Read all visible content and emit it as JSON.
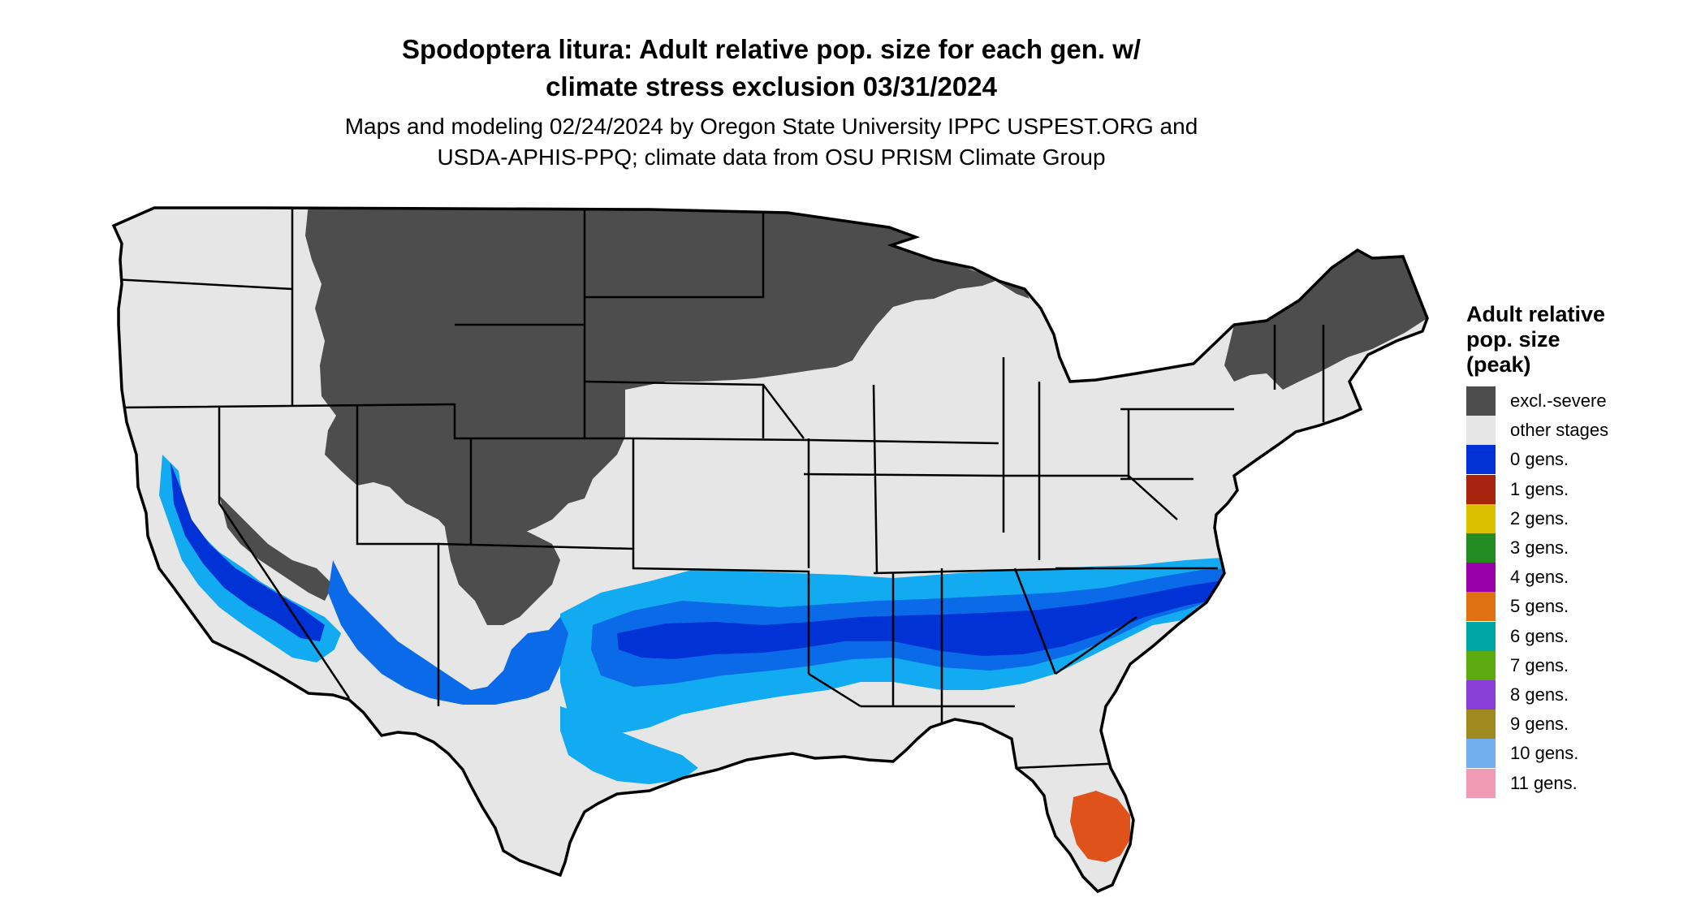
{
  "title_line1": "Spodoptera litura: Adult relative pop. size for each gen. w/",
  "title_line2": "climate stress exclusion 03/31/2024",
  "subtitle_line1": "Maps and modeling 02/24/2024 by Oregon State University IPPC USPEST.ORG and",
  "subtitle_line2": "USDA-APHIS-PPQ; climate data from OSU PRISM Climate Group",
  "legend": {
    "title_line1": "Adult relative",
    "title_line2": "pop. size",
    "title_line3": "(peak)",
    "items": [
      {
        "label": "excl.-severe",
        "color": "#4d4d4d"
      },
      {
        "label": "other stages",
        "color": "#e6e6e6"
      },
      {
        "label": "0 gens.",
        "color": "#0032d6"
      },
      {
        "label": "1 gens.",
        "color": "#a8240e"
      },
      {
        "label": "2 gens.",
        "color": "#dcc000"
      },
      {
        "label": "3 gens.",
        "color": "#228b22"
      },
      {
        "label": "4 gens.",
        "color": "#9b00a8"
      },
      {
        "label": "5 gens.",
        "color": "#e07010"
      },
      {
        "label": "6 gens.",
        "color": "#00a5a5"
      },
      {
        "label": "7 gens.",
        "color": "#5caa10"
      },
      {
        "label": "8 gens.",
        "color": "#8a3ed8"
      },
      {
        "label": "9 gens.",
        "color": "#a08a20"
      },
      {
        "label": "10 gens.",
        "color": "#72aef0"
      },
      {
        "label": "11 gens.",
        "color": "#f09ab6"
      }
    ]
  },
  "map_colors": {
    "land": "#e6e6e6",
    "excluded": "#4d4d4d",
    "gens0_dark": "#0032d6",
    "gens0_mid": "#0a6ae8",
    "gens0_light": "#12aaf0",
    "florida_orange": "#e0521c",
    "boundary": "#000000"
  }
}
